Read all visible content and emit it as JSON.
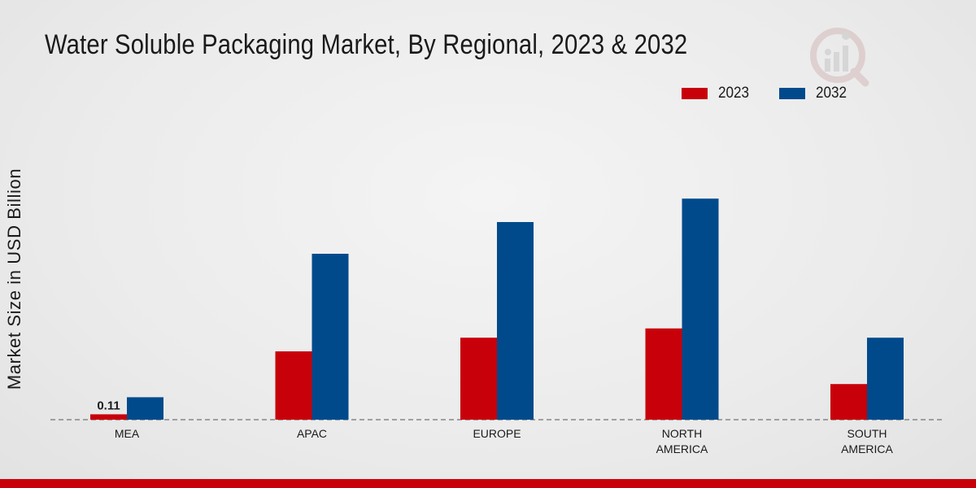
{
  "chart_data": {
    "type": "bar",
    "title": "Water Soluble Packaging Market, By Regional, 2023 & 2032",
    "xlabel": "",
    "ylabel": "Market Size in USD Billion",
    "categories": [
      "MEA",
      "APAC",
      "EUROPE",
      "NORTH AMERICA",
      "SOUTH AMERICA"
    ],
    "category_lines": [
      [
        "MEA"
      ],
      [
        "APAC"
      ],
      [
        "EUROPE"
      ],
      [
        "NORTH",
        "AMERICA"
      ],
      [
        "SOUTH",
        "AMERICA"
      ]
    ],
    "series": [
      {
        "name": "2023",
        "color": "#c8000a",
        "values": [
          0.11,
          1.4,
          1.68,
          1.87,
          0.73
        ]
      },
      {
        "name": "2032",
        "color": "#004a8c",
        "values": [
          0.46,
          3.4,
          4.05,
          4.53,
          1.68
        ]
      }
    ],
    "data_labels": [
      {
        "series": 0,
        "index": 0,
        "text": "0.11"
      }
    ],
    "ylim": [
      0,
      7
    ],
    "grid": false,
    "legend": "top-right"
  },
  "legend": {
    "items": [
      "2023",
      "2032"
    ]
  }
}
